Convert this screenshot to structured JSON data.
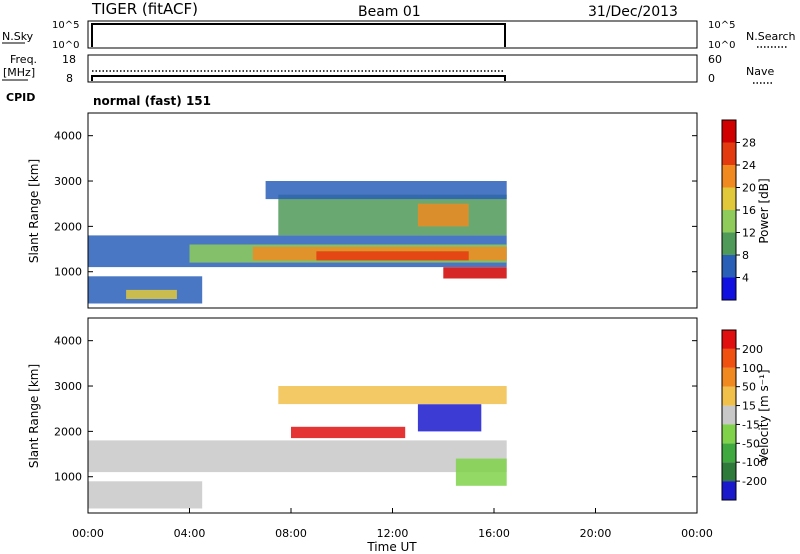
{
  "header": {
    "radar": "TIGER (fitACF)",
    "beam": "Beam 01",
    "date": "31/Dec/2013"
  },
  "top_panels": {
    "nsky_label": "N.Sky",
    "nsearch_label": "N.Search",
    "nsky_ticks": [
      "10^5",
      "10^0"
    ],
    "nsearch_ticks": [
      "10^5",
      "10^0"
    ],
    "freq_label": "Freq.",
    "freq_unit": "[MHz]",
    "freq_ticks": [
      "18",
      "8"
    ],
    "nave_label": "Nave",
    "nave_ticks": [
      "60",
      "0"
    ],
    "cpid_label": "CPID",
    "cpid_value": "normal (fast) 151"
  },
  "chart_data": [
    {
      "type": "heatmap",
      "parameter": "power",
      "ylabel": "Slant Range [km]",
      "xlabel": "",
      "y_ticks": [
        "1000",
        "2000",
        "3000",
        "4000"
      ],
      "ylim": [
        200,
        4500
      ],
      "xlim": [
        0,
        24
      ],
      "colorbar_label": "Power [dB]",
      "colorbar_ticks": [
        "4",
        "8",
        "12",
        "16",
        "20",
        "24",
        "28"
      ],
      "colors": [
        "#1010e0",
        "#2a5fb8",
        "#4f9a58",
        "#8ecb5a",
        "#e0c83a",
        "#f08a20",
        "#e43a10",
        "#d00000"
      ],
      "data_end_hour": 16.5,
      "bands": [
        {
          "t0": 0.0,
          "t1": 16.5,
          "r0": 1100,
          "r1": 1800,
          "level": 1
        },
        {
          "t0": 0.0,
          "t1": 4.5,
          "r0": 300,
          "r1": 900,
          "level": 1
        },
        {
          "t0": 1.5,
          "t1": 3.5,
          "r0": 400,
          "r1": 600,
          "level": 4
        },
        {
          "t0": 4.0,
          "t1": 16.5,
          "r0": 1200,
          "r1": 1600,
          "level": 3
        },
        {
          "t0": 6.5,
          "t1": 16.5,
          "r0": 1250,
          "r1": 1550,
          "level": 5
        },
        {
          "t0": 9.0,
          "t1": 15.0,
          "r0": 1250,
          "r1": 1450,
          "level": 6
        },
        {
          "t0": 14.0,
          "t1": 16.5,
          "r0": 850,
          "r1": 1100,
          "level": 7
        },
        {
          "t0": 7.5,
          "t1": 16.5,
          "r0": 1800,
          "r1": 2700,
          "level": 2
        },
        {
          "t0": 13.0,
          "t1": 15.0,
          "r0": 2000,
          "r1": 2500,
          "level": 5
        },
        {
          "t0": 7.0,
          "t1": 16.5,
          "r0": 2600,
          "r1": 3000,
          "level": 1
        }
      ]
    },
    {
      "type": "heatmap",
      "parameter": "velocity",
      "ylabel": "Slant Range [km]",
      "xlabel": "Time UT",
      "y_ticks": [
        "1000",
        "2000",
        "3000",
        "4000"
      ],
      "ylim": [
        200,
        4500
      ],
      "xlim": [
        0,
        24
      ],
      "x_ticks": [
        "00:00",
        "04:00",
        "08:00",
        "12:00",
        "16:00",
        "20:00",
        "00:00"
      ],
      "colorbar_label": "Velocity [m s⁻¹]",
      "colorbar_ticks": [
        "200",
        "100",
        "50",
        "15",
        "-15",
        "-50",
        "-100",
        "-200"
      ],
      "colors": [
        "#1a1acc",
        "#2e7a3a",
        "#3fa83f",
        "#7fd24a",
        "#c8c8c8",
        "#f0c04a",
        "#f08a20",
        "#f05010",
        "#e01010"
      ],
      "data_end_hour": 16.5,
      "bands": [
        {
          "t0": 0.0,
          "t1": 16.5,
          "r0": 1100,
          "r1": 1800,
          "level": 4
        },
        {
          "t0": 0.0,
          "t1": 4.5,
          "r0": 300,
          "r1": 900,
          "level": 4
        },
        {
          "t0": 8.0,
          "t1": 12.5,
          "r0": 1850,
          "r1": 2100,
          "level": 8
        },
        {
          "t0": 13.0,
          "t1": 15.5,
          "r0": 2000,
          "r1": 2600,
          "level": 0
        },
        {
          "t0": 14.5,
          "t1": 16.5,
          "r0": 800,
          "r1": 1400,
          "level": 3
        },
        {
          "t0": 7.5,
          "t1": 16.5,
          "r0": 2600,
          "r1": 3000,
          "level": 5
        }
      ]
    }
  ],
  "time_axis_label": "Time UT"
}
